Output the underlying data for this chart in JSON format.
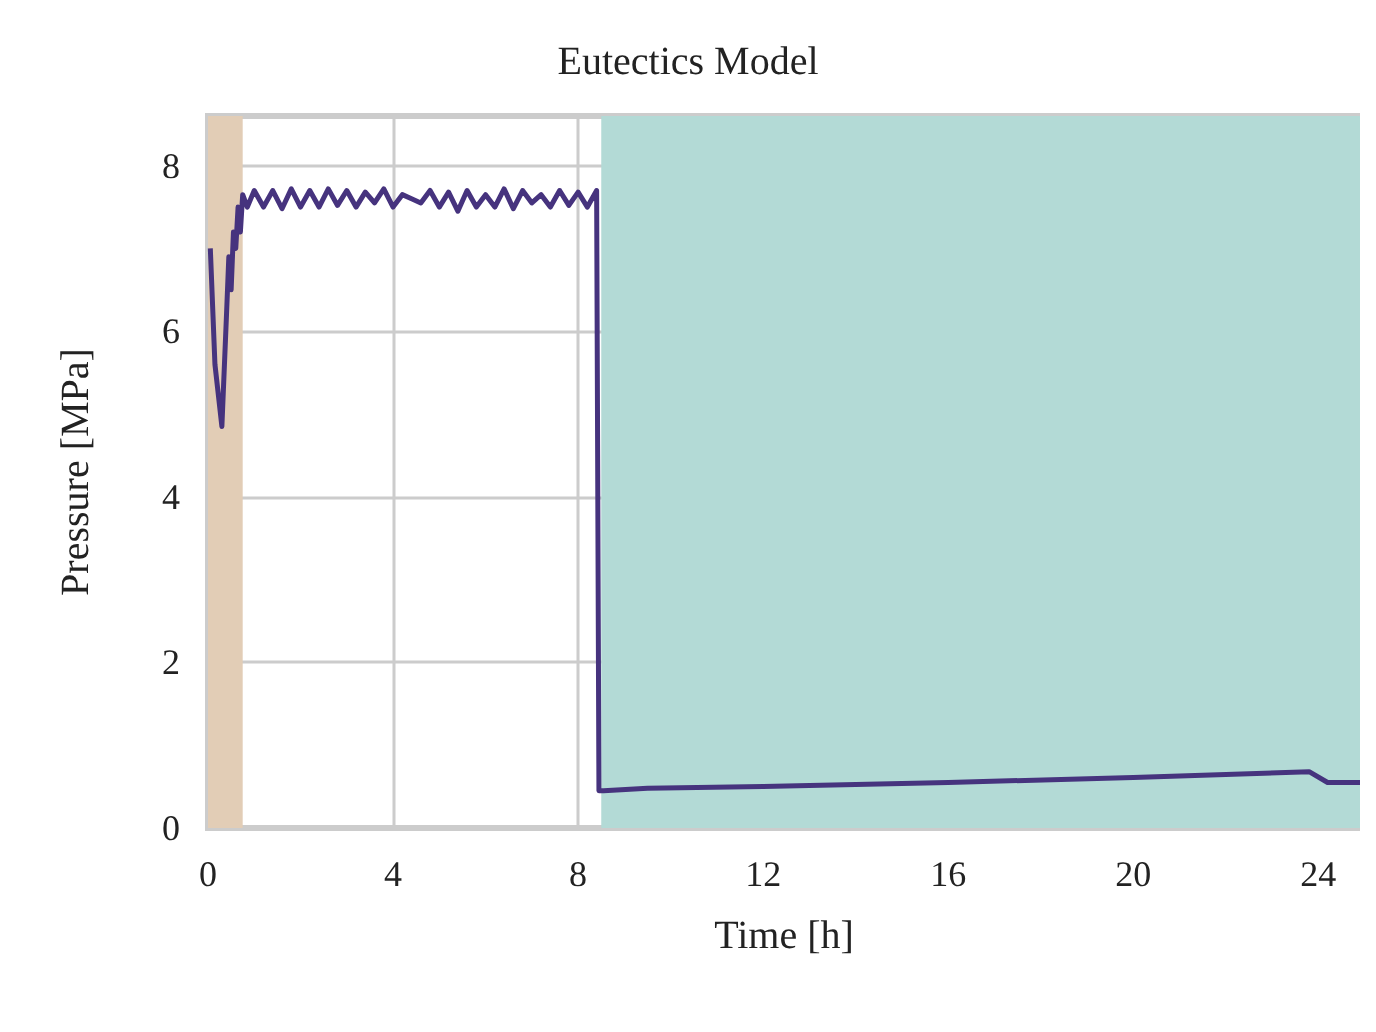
{
  "chart_data": {
    "type": "line",
    "title": "Eutectics Model",
    "xlabel": "Time [h]",
    "ylabel": "Pressure [MPa]",
    "x": [
      0.05,
      0.15,
      0.3,
      0.4,
      0.45,
      0.5,
      0.55,
      0.6,
      0.65,
      0.7,
      0.75,
      0.85,
      1.0,
      1.2,
      1.4,
      1.6,
      1.8,
      2.0,
      2.2,
      2.4,
      2.6,
      2.8,
      3.0,
      3.2,
      3.4,
      3.6,
      3.8,
      4.0,
      4.2,
      4.4,
      4.6,
      4.8,
      5.0,
      5.2,
      5.4,
      5.6,
      5.8,
      6.0,
      6.2,
      6.4,
      6.6,
      6.8,
      7.0,
      7.2,
      7.4,
      7.6,
      7.8,
      8.0,
      8.2,
      8.4,
      8.45,
      8.55,
      9.5,
      12,
      16,
      20,
      23.8,
      24.2,
      24.9
    ],
    "series": [
      {
        "color": "#46337e",
        "values": [
          7.0,
          5.6,
          4.85,
          6.2,
          6.9,
          6.5,
          7.2,
          7.0,
          7.5,
          7.2,
          7.65,
          7.5,
          7.7,
          7.5,
          7.7,
          7.48,
          7.72,
          7.5,
          7.7,
          7.5,
          7.72,
          7.52,
          7.7,
          7.5,
          7.68,
          7.55,
          7.72,
          7.5,
          7.65,
          7.6,
          7.55,
          7.7,
          7.5,
          7.68,
          7.45,
          7.7,
          7.5,
          7.65,
          7.5,
          7.72,
          7.48,
          7.7,
          7.55,
          7.65,
          7.5,
          7.7,
          7.52,
          7.68,
          7.5,
          7.7,
          0.45,
          0.45,
          0.48,
          0.5,
          0.55,
          0.61,
          0.68,
          0.55,
          0.55
        ]
      }
    ],
    "xlim": [
      0,
      24.9
    ],
    "ylim": [
      0,
      8.6
    ],
    "xticks": [
      0,
      4,
      8,
      12,
      16,
      20,
      24
    ],
    "yticks": [
      0,
      2,
      4,
      6,
      8
    ],
    "bands": [
      {
        "axis": "x",
        "from": 0,
        "to": 0.75,
        "color": "#e2cdb6"
      },
      {
        "axis": "x",
        "from": 8.5,
        "to": 24.9,
        "color": "#b3dad6"
      }
    ],
    "grid": true,
    "line_style": "solid",
    "marker": "none"
  }
}
